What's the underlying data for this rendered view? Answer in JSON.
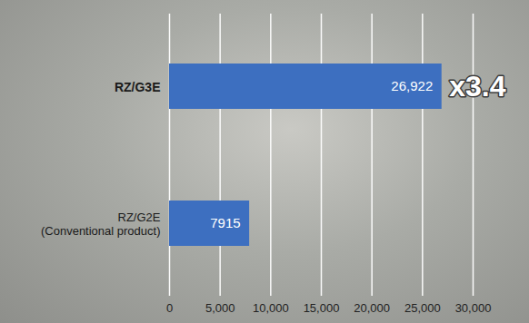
{
  "chart_data": {
    "type": "bar",
    "orientation": "horizontal",
    "categories": [
      "RZ/G3E",
      "RZ/G2E (Conventional product)"
    ],
    "values": [
      26922,
      7915
    ],
    "value_labels": [
      "26,922",
      "7915"
    ],
    "color": "#3d6fc0",
    "xlim": [
      0,
      30000
    ],
    "xticks": [
      0,
      5000,
      10000,
      15000,
      20000,
      25000,
      30000
    ],
    "grid": true,
    "data_labels": true,
    "annotations": [
      "x3.4"
    ]
  }
}
